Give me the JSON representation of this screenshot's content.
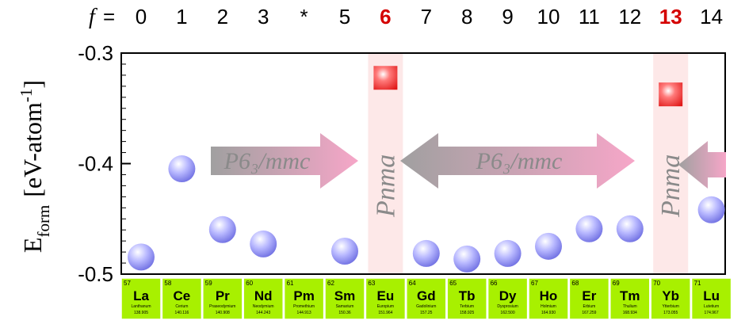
{
  "chart_data": {
    "type": "scatter",
    "ylabel_main": "E",
    "ylabel_sub": "form",
    "ylabel_unit": "[eV-atom",
    "ylabel_exp": "-1",
    "ylabel_close": "]",
    "ylim": [
      -0.5,
      -0.3
    ],
    "yticks": [
      "-0.3",
      "-0.4",
      "-0.5"
    ],
    "f_prefix": "f",
    "f_equals": "=",
    "f_labels": [
      "0",
      "1",
      "2",
      "3",
      "*",
      "5",
      "6",
      "7",
      "8",
      "9",
      "10",
      "11",
      "12",
      "13",
      "14"
    ],
    "f_highlight": [
      6,
      13
    ],
    "phases": [
      {
        "label": "P6₃/mmc"
      },
      {
        "label": "P6₃/mmc"
      }
    ],
    "vertical_phases": [
      {
        "label": "Pnma",
        "index": 6
      },
      {
        "label": "Pnma",
        "index": 13
      }
    ],
    "points": [
      {
        "element": "La",
        "index": 0,
        "y": -0.4845,
        "marker": "circle"
      },
      {
        "element": "Ce",
        "index": 1,
        "y": -0.4047,
        "marker": "circle"
      },
      {
        "element": "Pr",
        "index": 2,
        "y": -0.4597,
        "marker": "circle"
      },
      {
        "element": "Nd",
        "index": 3,
        "y": -0.4727,
        "marker": "circle"
      },
      {
        "element": "Sm",
        "index": 5,
        "y": -0.4792,
        "marker": "circle"
      },
      {
        "element": "Eu",
        "index": 6,
        "y": -0.3224,
        "marker": "square"
      },
      {
        "element": "Gd",
        "index": 7,
        "y": -0.4813,
        "marker": "circle"
      },
      {
        "element": "Tb",
        "index": 8,
        "y": -0.4863,
        "marker": "circle"
      },
      {
        "element": "Dy",
        "index": 9,
        "y": -0.4813,
        "marker": "circle"
      },
      {
        "element": "Ho",
        "index": 10,
        "y": -0.4748,
        "marker": "circle"
      },
      {
        "element": "Er",
        "index": 11,
        "y": -0.459,
        "marker": "circle"
      },
      {
        "element": "Tm",
        "index": 12,
        "y": -0.459,
        "marker": "circle"
      },
      {
        "element": "Yb",
        "index": 13,
        "y": -0.3374,
        "marker": "square"
      },
      {
        "element": "Lu",
        "index": 14,
        "y": -0.4418,
        "marker": "circle"
      }
    ],
    "elements": [
      {
        "num": "57",
        "sym": "La",
        "name": "Lanthanum",
        "mass": "138.905"
      },
      {
        "num": "58",
        "sym": "Ce",
        "name": "Cerium",
        "mass": "140.116"
      },
      {
        "num": "59",
        "sym": "Pr",
        "name": "Praseodymium",
        "mass": "140.908"
      },
      {
        "num": "60",
        "sym": "Nd",
        "name": "Neodymium",
        "mass": "144.243"
      },
      {
        "num": "61",
        "sym": "Pm",
        "name": "Promethium",
        "mass": "144.913"
      },
      {
        "num": "62",
        "sym": "Sm",
        "name": "Samarium",
        "mass": "150.36"
      },
      {
        "num": "63",
        "sym": "Eu",
        "name": "Europium",
        "mass": "151.964"
      },
      {
        "num": "64",
        "sym": "Gd",
        "name": "Gadolinium",
        "mass": "157.25"
      },
      {
        "num": "65",
        "sym": "Tb",
        "name": "Terbium",
        "mass": "158.925"
      },
      {
        "num": "66",
        "sym": "Dy",
        "name": "Dysprosium",
        "mass": "162.500"
      },
      {
        "num": "67",
        "sym": "Ho",
        "name": "Holmium",
        "mass": "164.930"
      },
      {
        "num": "68",
        "sym": "Er",
        "name": "Erbium",
        "mass": "167.259"
      },
      {
        "num": "69",
        "sym": "Tm",
        "name": "Thulium",
        "mass": "168.934"
      },
      {
        "num": "70",
        "sym": "Yb",
        "name": "Ytterbium",
        "mass": "173.055"
      },
      {
        "num": "71",
        "sym": "Lu",
        "name": "Lutetium",
        "mass": "174.967"
      }
    ],
    "colors": {
      "circle": "#8f8ff0",
      "square": "#e63030",
      "band": "#fde8e8",
      "cell": "#a8f000",
      "arrow_gray": "#a8a8a8",
      "arrow_pink": "#f4a8c8",
      "highlight": "#d40000"
    }
  }
}
